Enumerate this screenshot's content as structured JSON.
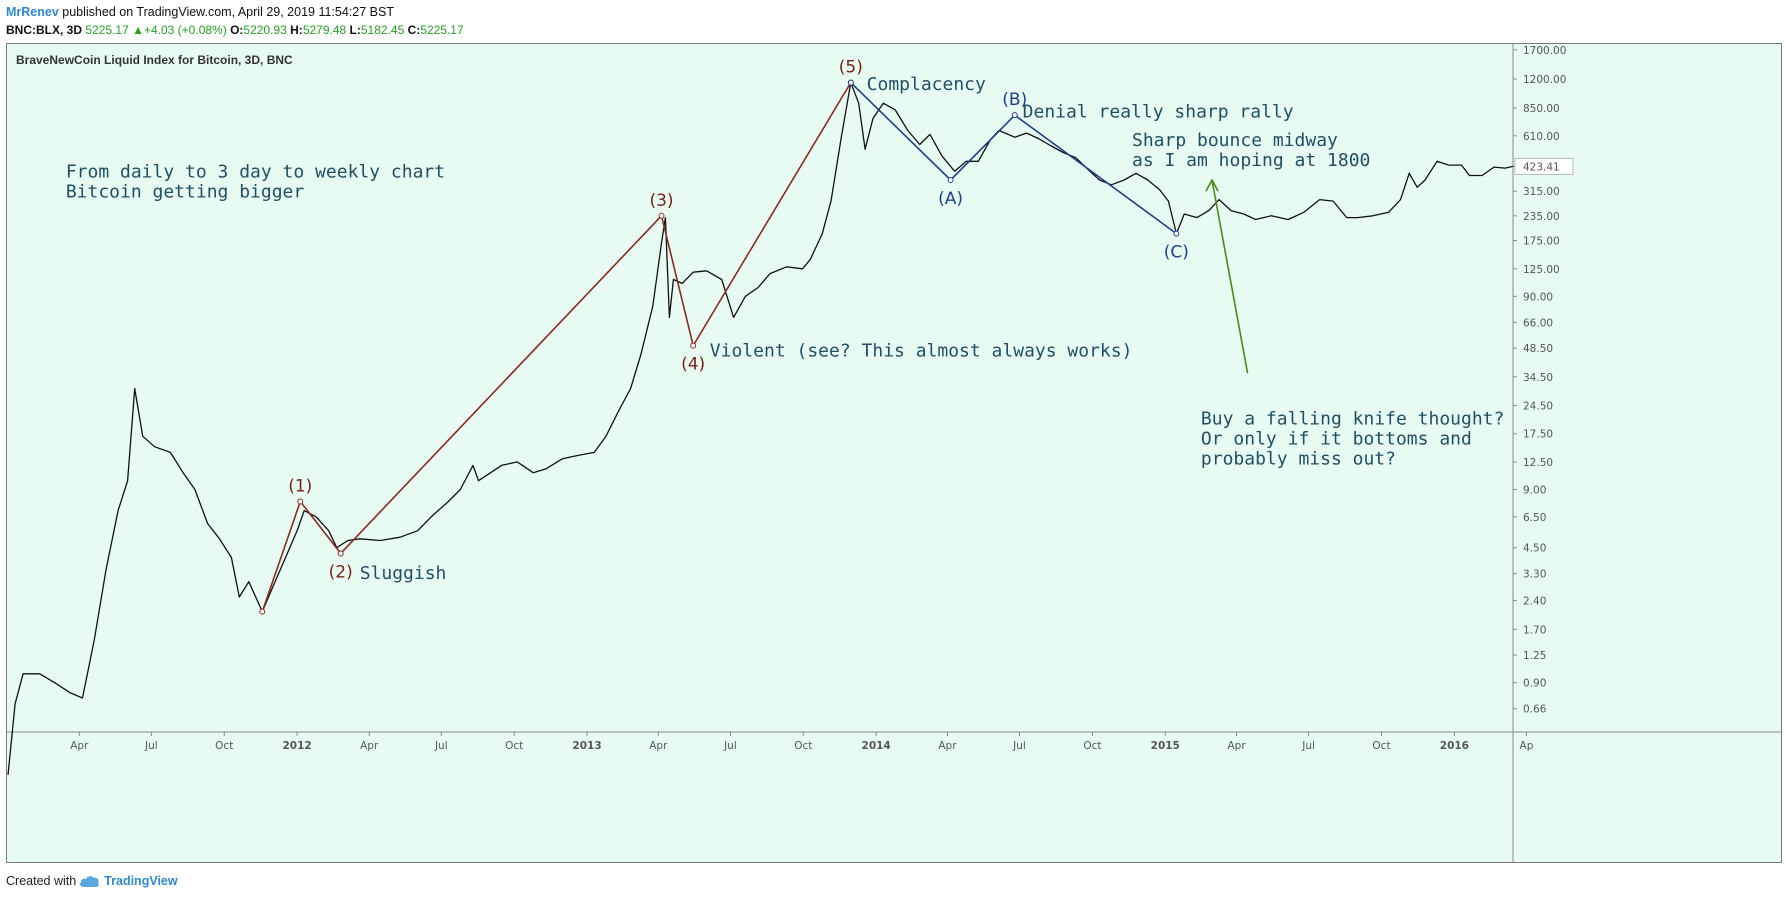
{
  "header": {
    "author": "MrRenev",
    "published_text": " published on TradingView.com, April 29, 2019 11:54:27 BST"
  },
  "ticker": {
    "symbol": "BNC:BLX, 3D",
    "last": "5225.17",
    "change": "+4.03 (+0.08%)",
    "open_label": "O:",
    "open": "5220.93",
    "high_label": "H:",
    "high": "5279.48",
    "low_label": "L:",
    "low": "5182.45",
    "close_label": "C:",
    "close": "5225.17"
  },
  "chart_data": {
    "type": "line",
    "title": "BraveNewCoin Liquid Index for Bitcoin, 3D, BNC",
    "yscale": "log",
    "xlim": [
      "2011-01-01",
      "2016-03-15"
    ],
    "ylim": [
      0.5,
      1800
    ],
    "y_ticks": [
      0.66,
      0.9,
      1.25,
      1.7,
      2.4,
      3.3,
      4.5,
      6.5,
      9.0,
      12.5,
      17.5,
      24.5,
      34.5,
      48.5,
      66.0,
      90.0,
      125.0,
      175.0,
      235.0,
      315.0,
      423.41,
      610.0,
      850.0,
      1200.0,
      1700.0
    ],
    "y_tick_labels": [
      "0.66",
      "0.90",
      "1.25",
      "1.70",
      "2.40",
      "3.30",
      "4.50",
      "6.50",
      "9.00",
      "12.50",
      "17.50",
      "24.50",
      "34.50",
      "48.50",
      "66.00",
      "90.00",
      "125.00",
      "175.00",
      "235.00",
      "315.00",
      "423.41",
      "610.00",
      "850.00",
      "1200.00",
      "1700.00"
    ],
    "x_ticks": [
      {
        "label": "Apr",
        "date": "2011-04-01"
      },
      {
        "label": "Jul",
        "date": "2011-07-01"
      },
      {
        "label": "Oct",
        "date": "2011-10-01"
      },
      {
        "label": "2012",
        "date": "2012-01-01"
      },
      {
        "label": "Apr",
        "date": "2012-04-01"
      },
      {
        "label": "Jul",
        "date": "2012-07-01"
      },
      {
        "label": "Oct",
        "date": "2012-10-01"
      },
      {
        "label": "2013",
        "date": "2013-01-01"
      },
      {
        "label": "Apr",
        "date": "2013-04-01"
      },
      {
        "label": "Jul",
        "date": "2013-07-01"
      },
      {
        "label": "Oct",
        "date": "2013-10-01"
      },
      {
        "label": "2014",
        "date": "2014-01-01"
      },
      {
        "label": "Apr",
        "date": "2014-04-01"
      },
      {
        "label": "Jul",
        "date": "2014-07-01"
      },
      {
        "label": "Oct",
        "date": "2014-10-01"
      },
      {
        "label": "2015",
        "date": "2015-01-01"
      },
      {
        "label": "Apr",
        "date": "2015-04-01"
      },
      {
        "label": "Jul",
        "date": "2015-07-01"
      },
      {
        "label": "Oct",
        "date": "2015-10-01"
      },
      {
        "label": "2016",
        "date": "2016-01-01"
      },
      {
        "label": "Ap",
        "date": "2016-04-01"
      }
    ],
    "last_price_label": "423.41",
    "series": [
      {
        "color": "#111111",
        "points": [
          [
            "2011-01-01",
            0.3
          ],
          [
            "2011-01-10",
            0.7
          ],
          [
            "2011-01-20",
            1.0
          ],
          [
            "2011-02-10",
            1.0
          ],
          [
            "2011-03-01",
            0.9
          ],
          [
            "2011-03-20",
            0.8
          ],
          [
            "2011-04-05",
            0.75
          ],
          [
            "2011-04-20",
            1.5
          ],
          [
            "2011-05-05",
            3.5
          ],
          [
            "2011-05-20",
            7.0
          ],
          [
            "2011-06-01",
            10.0
          ],
          [
            "2011-06-10",
            30.0
          ],
          [
            "2011-06-20",
            17.0
          ],
          [
            "2011-07-05",
            15.0
          ],
          [
            "2011-07-25",
            14.0
          ],
          [
            "2011-08-10",
            11.0
          ],
          [
            "2011-08-25",
            9.0
          ],
          [
            "2011-09-10",
            6.0
          ],
          [
            "2011-09-25",
            5.0
          ],
          [
            "2011-10-10",
            4.0
          ],
          [
            "2011-10-20",
            2.5
          ],
          [
            "2011-11-01",
            3.0
          ],
          [
            "2011-11-18",
            2.1
          ],
          [
            "2011-12-01",
            2.8
          ],
          [
            "2011-12-15",
            3.8
          ],
          [
            "2012-01-01",
            5.5
          ],
          [
            "2012-01-10",
            7.0
          ],
          [
            "2012-01-25",
            6.5
          ],
          [
            "2012-02-10",
            5.5
          ],
          [
            "2012-02-20",
            4.5
          ],
          [
            "2012-03-05",
            4.9
          ],
          [
            "2012-03-20",
            5.0
          ],
          [
            "2012-04-15",
            4.9
          ],
          [
            "2012-05-10",
            5.1
          ],
          [
            "2012-06-01",
            5.5
          ],
          [
            "2012-06-20",
            6.6
          ],
          [
            "2012-07-10",
            7.8
          ],
          [
            "2012-07-25",
            9.0
          ],
          [
            "2012-08-10",
            12.0
          ],
          [
            "2012-08-17",
            10.0
          ],
          [
            "2012-08-25",
            10.5
          ],
          [
            "2012-09-15",
            12.0
          ],
          [
            "2012-10-05",
            12.5
          ],
          [
            "2012-10-25",
            11.0
          ],
          [
            "2012-11-10",
            11.5
          ],
          [
            "2012-12-01",
            13.0
          ],
          [
            "2012-12-20",
            13.5
          ],
          [
            "2013-01-10",
            14.0
          ],
          [
            "2013-01-25",
            17.0
          ],
          [
            "2013-02-10",
            23.0
          ],
          [
            "2013-02-25",
            30.0
          ],
          [
            "2013-03-10",
            45.0
          ],
          [
            "2013-03-25",
            80.0
          ],
          [
            "2013-04-05",
            170.0
          ],
          [
            "2013-04-10",
            230.0
          ],
          [
            "2013-04-15",
            70.0
          ],
          [
            "2013-04-20",
            110.0
          ],
          [
            "2013-05-01",
            105.0
          ],
          [
            "2013-05-15",
            120.0
          ],
          [
            "2013-06-01",
            122.0
          ],
          [
            "2013-06-20",
            110.0
          ],
          [
            "2013-07-05",
            70.0
          ],
          [
            "2013-07-20",
            90.0
          ],
          [
            "2013-08-05",
            100.0
          ],
          [
            "2013-08-20",
            118.0
          ],
          [
            "2013-09-10",
            128.0
          ],
          [
            "2013-09-30",
            125.0
          ],
          [
            "2013-10-10",
            140.0
          ],
          [
            "2013-10-25",
            190.0
          ],
          [
            "2013-11-05",
            280.0
          ],
          [
            "2013-11-18",
            600.0
          ],
          [
            "2013-11-30",
            1150.0
          ],
          [
            "2013-12-10",
            900.0
          ],
          [
            "2013-12-18",
            520.0
          ],
          [
            "2013-12-28",
            750.0
          ],
          [
            "2014-01-10",
            900.0
          ],
          [
            "2014-01-25",
            830.0
          ],
          [
            "2014-02-10",
            650.0
          ],
          [
            "2014-02-25",
            550.0
          ],
          [
            "2014-03-10",
            620.0
          ],
          [
            "2014-03-25",
            480.0
          ],
          [
            "2014-04-10",
            400.0
          ],
          [
            "2014-04-25",
            450.0
          ],
          [
            "2014-05-10",
            450.0
          ],
          [
            "2014-05-25",
            580.0
          ],
          [
            "2014-06-05",
            650.0
          ],
          [
            "2014-06-25",
            600.0
          ],
          [
            "2014-07-10",
            630.0
          ],
          [
            "2014-07-25",
            590.0
          ],
          [
            "2014-08-10",
            540.0
          ],
          [
            "2014-08-25",
            500.0
          ],
          [
            "2014-09-10",
            470.0
          ],
          [
            "2014-09-25",
            410.0
          ],
          [
            "2014-10-10",
            360.0
          ],
          [
            "2014-10-25",
            340.0
          ],
          [
            "2014-11-10",
            360.0
          ],
          [
            "2014-11-25",
            390.0
          ],
          [
            "2014-12-10",
            360.0
          ],
          [
            "2014-12-25",
            320.0
          ],
          [
            "2015-01-05",
            280.0
          ],
          [
            "2015-01-15",
            190.0
          ],
          [
            "2015-01-25",
            240.0
          ],
          [
            "2015-02-10",
            230.0
          ],
          [
            "2015-02-25",
            250.0
          ],
          [
            "2015-03-10",
            285.0
          ],
          [
            "2015-03-25",
            250.0
          ],
          [
            "2015-04-10",
            240.0
          ],
          [
            "2015-04-25",
            225.0
          ],
          [
            "2015-05-15",
            235.0
          ],
          [
            "2015-06-05",
            225.0
          ],
          [
            "2015-06-25",
            245.0
          ],
          [
            "2015-07-15",
            285.0
          ],
          [
            "2015-08-01",
            280.0
          ],
          [
            "2015-08-18",
            230.0
          ],
          [
            "2015-09-01",
            230.0
          ],
          [
            "2015-09-20",
            235.0
          ],
          [
            "2015-10-10",
            245.0
          ],
          [
            "2015-10-25",
            285.0
          ],
          [
            "2015-11-05",
            390.0
          ],
          [
            "2015-11-15",
            330.0
          ],
          [
            "2015-11-25",
            360.0
          ],
          [
            "2015-12-10",
            450.0
          ],
          [
            "2015-12-25",
            430.0
          ],
          [
            "2016-01-10",
            430.0
          ],
          [
            "2016-01-20",
            380.0
          ],
          [
            "2016-02-05",
            380.0
          ],
          [
            "2016-02-20",
            420.0
          ],
          [
            "2016-03-05",
            415.0
          ],
          [
            "2016-03-15",
            423.41
          ]
        ]
      },
      {
        "color": "#8b2a1f",
        "points": [
          [
            "2011-11-18",
            2.1
          ],
          [
            "2012-01-05",
            7.8
          ],
          [
            "2012-02-25",
            4.2
          ],
          [
            "2013-04-05",
            235.0
          ],
          [
            "2013-05-15",
            50.0
          ],
          [
            "2013-11-30",
            1150.0
          ]
        ]
      },
      {
        "color": "#1e3f8f",
        "points": [
          [
            "2013-11-30",
            1150.0
          ],
          [
            "2014-04-05",
            360.0
          ],
          [
            "2014-06-25",
            780.0
          ],
          [
            "2015-01-15",
            190.0
          ]
        ]
      },
      {
        "color": "#4a8a1a",
        "points": [
          [
            "2015-04-15",
            36.0
          ],
          [
            "2015-03-01",
            360.0
          ]
        ]
      }
    ],
    "wave_labels": [
      {
        "text": "(1)",
        "x": "2012-01-05",
        "y": 7.8,
        "color": "#7a1f12",
        "pos": "above"
      },
      {
        "text": "(2)",
        "x": "2012-02-25",
        "y": 4.2,
        "color": "#7a1f12",
        "pos": "below"
      },
      {
        "text": "(3)",
        "x": "2013-04-05",
        "y": 235.0,
        "color": "#7a1f12",
        "pos": "above"
      },
      {
        "text": "(4)",
        "x": "2013-05-15",
        "y": 50.0,
        "color": "#7a1f12",
        "pos": "below"
      },
      {
        "text": "(5)",
        "x": "2013-11-30",
        "y": 1150.0,
        "color": "#7a1f12",
        "pos": "above"
      },
      {
        "text": "(A)",
        "x": "2014-04-05",
        "y": 360.0,
        "color": "#1e3f8f",
        "pos": "below"
      },
      {
        "text": "(B)",
        "x": "2014-06-25",
        "y": 780.0,
        "color": "#1e3f8f",
        "pos": "above"
      },
      {
        "text": "(C)",
        "x": "2015-01-15",
        "y": 190.0,
        "color": "#1e3f8f",
        "pos": "below"
      }
    ],
    "annotations": [
      {
        "lines": [
          "From daily to 3 day to weekly chart",
          "Bitcoin getting bigger"
        ],
        "x": "2011-03-15",
        "y": 370.0
      },
      {
        "lines": [
          "Sluggish"
        ],
        "x": "2012-03-20",
        "y": 3.1
      },
      {
        "lines": [
          "Violent (see? This almost always works)"
        ],
        "x": "2013-06-05",
        "y": 44.0
      },
      {
        "lines": [
          "Complacency"
        ],
        "x": "2013-12-20",
        "y": 1050.0
      },
      {
        "lines": [
          "Denial really sharp rally"
        ],
        "x": "2014-07-05",
        "y": 760.0
      },
      {
        "lines": [
          "Sharp bounce midway",
          "as I am hoping at 1800"
        ],
        "x": "2014-11-20",
        "y": 540.0
      },
      {
        "lines": [
          "Buy a falling knife thought?",
          "Or only if it bottoms and",
          "probably miss out?"
        ],
        "x": "2015-02-15",
        "y": 19.5
      }
    ]
  },
  "footer": {
    "created_with": "Created with",
    "brand": "TradingView",
    "logo_icon": "tradingview-cloud-icon"
  }
}
